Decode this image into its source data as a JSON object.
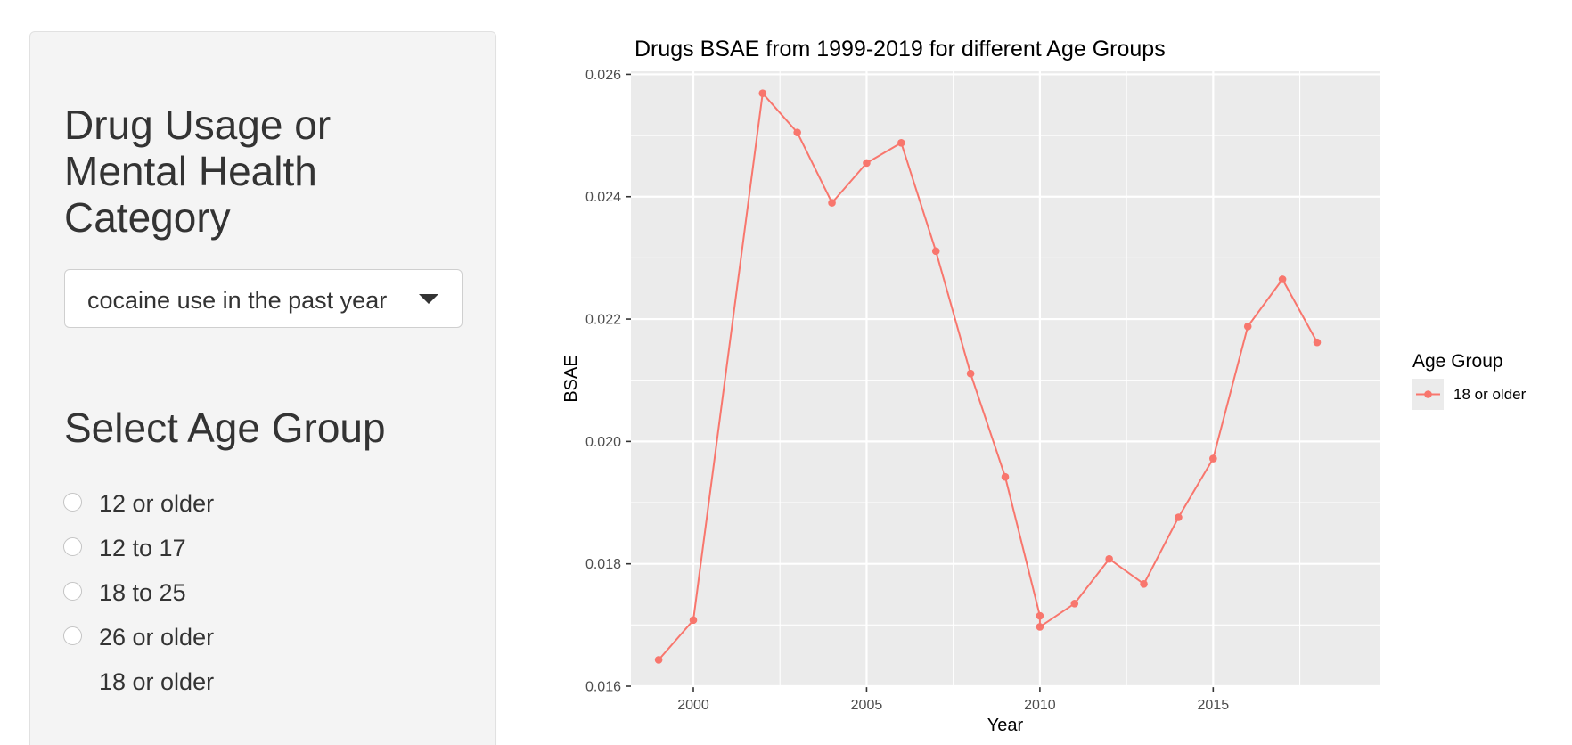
{
  "sidebar": {
    "category_heading": "Drug Usage or Mental Health Category",
    "category_select": {
      "selected": "cocaine use in the past year"
    },
    "age_heading": "Select Age Group",
    "age_options": [
      {
        "label": "12 or older",
        "selected": false,
        "has_radio": true
      },
      {
        "label": "12 to 17",
        "selected": false,
        "has_radio": true
      },
      {
        "label": "18 to 25",
        "selected": false,
        "has_radio": true
      },
      {
        "label": "26 or older",
        "selected": false,
        "has_radio": true
      },
      {
        "label": "18 or older",
        "selected": false,
        "has_radio": false
      }
    ]
  },
  "colors": {
    "panel_bg": "#ebebeb",
    "grid": "#ffffff",
    "series": "#f8766d",
    "text": "#333333",
    "sidebar_bg": "#f4f4f4"
  },
  "chart_data": {
    "type": "line",
    "title": "Drugs BSAE from 1999-2019 for different Age Groups",
    "xlabel": "Year",
    "ylabel": "BSAE",
    "xlim": [
      1998.2,
      2019.8
    ],
    "ylim": [
      0.016,
      0.02605
    ],
    "x_ticks": [
      2000,
      2005,
      2010,
      2015
    ],
    "x_tick_labels": [
      "2000",
      "2005",
      "2010",
      "2015"
    ],
    "y_ticks": [
      0.016,
      0.018,
      0.02,
      0.022,
      0.024,
      0.026
    ],
    "y_tick_labels": [
      "0.016",
      "0.018",
      "0.020",
      "0.022",
      "0.024",
      "0.026"
    ],
    "grid": true,
    "legend": {
      "title": "Age Group",
      "position": "right",
      "entries": [
        "18 or older"
      ]
    },
    "series": [
      {
        "name": "18 or older",
        "color": "#f8766d",
        "x": [
          1999,
          2000,
          2002,
          2003,
          2004,
          2005,
          2006,
          2007,
          2008,
          2009,
          2010,
          2010,
          2011,
          2012,
          2013,
          2014,
          2015,
          2016,
          2017,
          2018
        ],
        "y": [
          0.01643,
          0.01708,
          0.02569,
          0.02505,
          0.0239,
          0.02455,
          0.02488,
          0.02311,
          0.02111,
          0.01942,
          0.01715,
          0.01697,
          0.01735,
          0.01808,
          0.01767,
          0.01876,
          0.01972,
          0.02188,
          0.02265,
          0.02162
        ]
      }
    ]
  }
}
